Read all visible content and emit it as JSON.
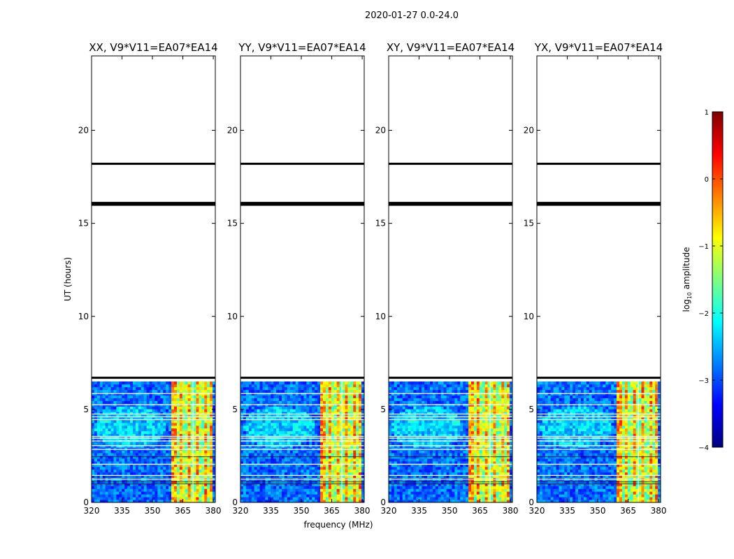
{
  "figure_title": "2020-01-27 0.0-24.0",
  "chart_data": [
    {
      "type": "heatmap",
      "title": "XX, V9*V11=EA07*EA14",
      "xlabel": "",
      "ylabel": "UT (hours)",
      "xlim": [
        320,
        381
      ],
      "ylim": [
        0,
        24
      ],
      "x_ticks": [
        320,
        335,
        350,
        365,
        380
      ],
      "y_ticks": [
        0,
        5,
        10,
        15,
        20
      ],
      "data_extent_hours": [
        0,
        6.5
      ],
      "bright_band_mhz": [
        359,
        380
      ],
      "bright_band_columns_mhz": [
        363,
        366,
        370,
        374,
        378
      ],
      "gap_lines_hours": [
        6.7,
        16.0,
        16.1,
        18.2
      ],
      "flag_rows_hours": [
        5.85,
        5.25,
        4.75,
        4.6,
        4.45,
        3.55,
        3.45,
        3.3,
        3.05,
        2.85,
        2.05,
        1.45,
        1.25
      ],
      "dark_rows_hours": [
        2.45,
        1.1,
        1.0
      ]
    },
    {
      "type": "heatmap",
      "title": "YY, V9*V11=EA07*EA14",
      "xlabel": "",
      "ylabel": "",
      "xlim": [
        320,
        381
      ],
      "ylim": [
        0,
        24
      ],
      "x_ticks": [
        320,
        335,
        350,
        365,
        380
      ],
      "y_ticks": [
        0,
        5,
        10,
        15,
        20
      ],
      "data_extent_hours": [
        0,
        6.5
      ],
      "bright_band_mhz": [
        359,
        380
      ],
      "bright_band_columns_mhz": [
        363,
        366,
        370,
        374,
        378
      ],
      "gap_lines_hours": [
        6.7,
        16.0,
        16.1,
        18.2
      ],
      "flag_rows_hours": [
        5.85,
        5.25,
        4.75,
        4.6,
        4.45,
        3.55,
        3.45,
        3.3,
        3.05,
        2.85,
        2.05,
        1.45,
        1.25
      ],
      "dark_rows_hours": [
        2.45,
        1.1,
        1.0
      ]
    },
    {
      "type": "heatmap",
      "title": "XY, V9*V11=EA07*EA14",
      "xlabel": "frequency (MHz)",
      "ylabel": "",
      "xlim": [
        320,
        381
      ],
      "ylim": [
        0,
        24
      ],
      "x_ticks": [
        320,
        335,
        350,
        365,
        380
      ],
      "y_ticks": [
        0,
        5,
        10,
        15,
        20
      ],
      "data_extent_hours": [
        0,
        6.5
      ],
      "bright_band_mhz": [
        359,
        380
      ],
      "bright_band_columns_mhz": [
        363,
        366,
        370,
        374,
        378
      ],
      "gap_lines_hours": [
        6.7,
        16.0,
        16.1,
        18.2
      ],
      "flag_rows_hours": [
        5.85,
        5.25,
        4.75,
        4.6,
        4.45,
        3.55,
        3.45,
        3.3,
        3.05,
        2.85,
        2.05,
        1.45,
        1.25
      ],
      "dark_rows_hours": [
        2.45,
        1.1,
        1.0
      ]
    },
    {
      "type": "heatmap",
      "title": "YX, V9*V11=EA07*EA14",
      "xlabel": "",
      "ylabel": "",
      "xlim": [
        320,
        381
      ],
      "ylim": [
        0,
        24
      ],
      "x_ticks": [
        320,
        335,
        350,
        365,
        380
      ],
      "y_ticks": [
        0,
        5,
        10,
        15,
        20
      ],
      "data_extent_hours": [
        0,
        6.5
      ],
      "bright_band_mhz": [
        359,
        380
      ],
      "bright_band_columns_mhz": [
        363,
        366,
        370,
        374,
        378
      ],
      "gap_lines_hours": [
        6.7,
        16.0,
        16.1,
        18.2
      ],
      "flag_rows_hours": [
        5.85,
        5.25,
        4.75,
        4.6,
        4.45,
        3.55,
        3.45,
        3.3,
        3.05,
        2.85,
        2.05,
        1.45,
        1.25
      ],
      "dark_rows_hours": [
        2.45,
        1.1,
        1.0
      ]
    }
  ],
  "colorbar": {
    "label_prefix": "log",
    "label_sub": "10",
    "label_suffix": " amplitude",
    "ticks": [
      1,
      0,
      -1,
      -2,
      -3,
      -4
    ],
    "tick_labels": [
      "1",
      "0",
      "−1",
      "−2",
      "−3",
      "−4"
    ],
    "range": [
      -4,
      1
    ],
    "colormap": [
      "#00007f",
      "#0000ff",
      "#007fff",
      "#00ffff",
      "#7fff7f",
      "#ffff00",
      "#ff7f00",
      "#ff0000",
      "#7f0000"
    ]
  }
}
